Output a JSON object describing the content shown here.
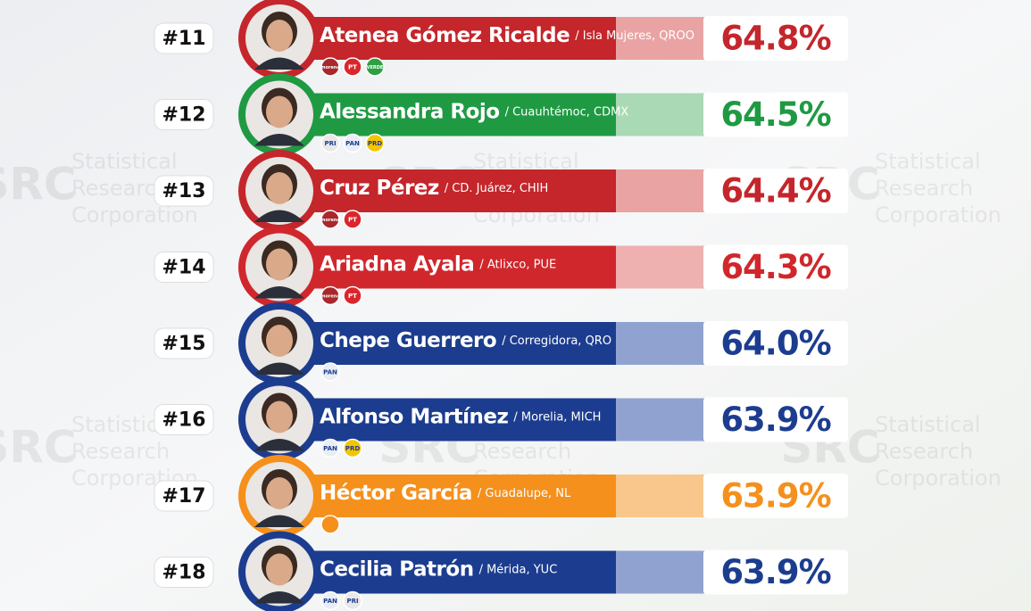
{
  "watermark": {
    "logo": "SRC",
    "lines": [
      "Statistical",
      "Research",
      "Corporation"
    ]
  },
  "rows": [
    {
      "rank": "#11",
      "name": "Atenea Gómez Ricalde",
      "location": "/ Isla Mujeres, QROO",
      "percent": "64.8%",
      "color": "#c4262b",
      "light": "#eaa3a3",
      "text_color": "#c4262b",
      "parties": [
        {
          "label": "morena",
          "color": "#a8282c"
        },
        {
          "label": "PT",
          "color": "#d9262c"
        },
        {
          "label": "VERDE",
          "color": "#2ea043"
        }
      ]
    },
    {
      "rank": "#12",
      "name": "Alessandra Rojo",
      "location": "/ Cuauhtémoc, CDMX",
      "percent": "64.5%",
      "color": "#1f9a43",
      "light": "#a9d9b5",
      "text_color": "#1f9a43",
      "parties": [
        {
          "label": "PRI",
          "color": "#e8e8e8"
        },
        {
          "label": "PAN",
          "color": "#e9edf6"
        },
        {
          "label": "PRD",
          "color": "#f5c400"
        }
      ]
    },
    {
      "rank": "#13",
      "name": "Cruz Pérez",
      "location": "/ CD. Juárez, CHIH",
      "percent": "64.4%",
      "color": "#c4262b",
      "light": "#eaa3a3",
      "text_color": "#c4262b",
      "parties": [
        {
          "label": "morena",
          "color": "#a8282c"
        },
        {
          "label": "PT",
          "color": "#d9262c"
        }
      ]
    },
    {
      "rank": "#14",
      "name": "Ariadna Ayala",
      "location": "/ Atlixco, PUE",
      "percent": "64.3%",
      "color": "#d0272c",
      "light": "#efb0b0",
      "text_color": "#d0272c",
      "parties": [
        {
          "label": "morena",
          "color": "#a8282c"
        },
        {
          "label": "PT",
          "color": "#d9262c"
        }
      ]
    },
    {
      "rank": "#15",
      "name": "Chepe Guerrero",
      "location": "/ Corregidora, QRO",
      "percent": "64.0%",
      "color": "#1c3d8f",
      "light": "#90a3d0",
      "text_color": "#1c3d8f",
      "parties": [
        {
          "label": "PAN",
          "color": "#e9edf6"
        }
      ]
    },
    {
      "rank": "#16",
      "name": "Alfonso Martínez",
      "location": "/ Morelia, MICH",
      "percent": "63.9%",
      "color": "#1c3d8f",
      "light": "#90a3d0",
      "text_color": "#1c3d8f",
      "parties": [
        {
          "label": "PAN",
          "color": "#e9edf6"
        },
        {
          "label": "PRD",
          "color": "#f5c400"
        }
      ]
    },
    {
      "rank": "#17",
      "name": "Héctor García",
      "location": "/ Guadalupe, NL",
      "percent": "63.9%",
      "color": "#f5901c",
      "light": "#f9c78c",
      "text_color": "#f5901c",
      "parties": [
        {
          "color": "#f5901c"
        }
      ]
    },
    {
      "rank": "#18",
      "name": "Cecilia Patrón",
      "location": "/ Mérida, YUC",
      "percent": "63.9%",
      "color": "#1c3d8f",
      "light": "#90a3d0",
      "text_color": "#1c3d8f",
      "parties": [
        {
          "label": "PAN",
          "color": "#e9edf6"
        },
        {
          "label": "PRI",
          "color": "#e8e8e8"
        }
      ]
    }
  ]
}
